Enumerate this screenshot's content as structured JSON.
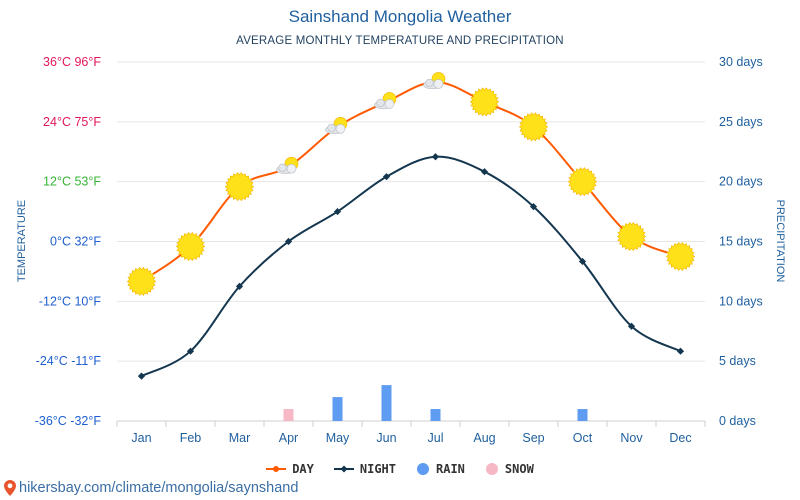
{
  "chart_data": {
    "type": "line",
    "title": "Sainshand Mongolia Weather",
    "subtitle": "AVERAGE MONTHLY TEMPERATURE AND PRECIPITATION",
    "categories": [
      "Jan",
      "Feb",
      "Mar",
      "Apr",
      "May",
      "Jun",
      "Jul",
      "Aug",
      "Sep",
      "Oct",
      "Nov",
      "Dec"
    ],
    "series": [
      {
        "name": "DAY",
        "color": "#ff5a00",
        "values": [
          -8,
          -1,
          11,
          15,
          23,
          28,
          32,
          28,
          23,
          12,
          1,
          -3
        ]
      },
      {
        "name": "NIGHT",
        "color": "#14374f",
        "values": [
          -27,
          -22,
          -9,
          0,
          6,
          13,
          17,
          14,
          7,
          -4,
          -17,
          -22
        ]
      },
      {
        "name": "RAIN",
        "color": "#5e9cf2",
        "values": [
          0,
          0,
          0,
          0,
          2,
          3,
          1,
          0,
          0,
          1,
          0,
          0
        ]
      },
      {
        "name": "SNOW",
        "color": "#f7b8c6",
        "values": [
          0,
          0,
          0,
          1,
          0,
          0,
          0,
          0,
          0,
          0,
          0,
          0
        ]
      }
    ],
    "day_icons": [
      "sun",
      "sun",
      "sun",
      "partly-cloudy",
      "partly-cloudy",
      "partly-cloudy",
      "partly-cloudy",
      "sun",
      "sun",
      "sun",
      "sun",
      "sun"
    ],
    "ylabel_left": "TEMPERATURE",
    "ylabel_right": "PRECIPITATION",
    "ylim_left": [
      -36,
      36
    ],
    "ylim_right": [
      0,
      30
    ],
    "left_ticks": [
      {
        "value": 36,
        "label": "36°C 96°F",
        "color": "#e0175a"
      },
      {
        "value": 24,
        "label": "24°C 75°F",
        "color": "#e0175a"
      },
      {
        "value": 12,
        "label": "12°C 53°F",
        "color": "#36b436"
      },
      {
        "value": 0,
        "label": "0°C 32°F",
        "color": "#1f5fcf"
      },
      {
        "value": -12,
        "label": "-12°C 10°F",
        "color": "#1f5fcf"
      },
      {
        "value": -24,
        "label": "-24°C -11°F",
        "color": "#1f5fcf"
      },
      {
        "value": -36,
        "label": "-36°C -32°F",
        "color": "#1f5fcf"
      }
    ],
    "right_ticks": [
      {
        "value": 30,
        "label": "30 days"
      },
      {
        "value": 25,
        "label": "25 days"
      },
      {
        "value": 20,
        "label": "20 days"
      },
      {
        "value": 15,
        "label": "15 days"
      },
      {
        "value": 10,
        "label": "10 days"
      },
      {
        "value": 5,
        "label": "5 days"
      },
      {
        "value": 0,
        "label": "0 days"
      }
    ],
    "grid": true,
    "legend_position": "bottom-center"
  },
  "legend": {
    "day_label": "DAY",
    "night_label": "NIGHT",
    "rain_label": "RAIN",
    "snow_label": "SNOW"
  },
  "footer": {
    "text": "hikersbay.com/climate/mongolia/saynshand",
    "icon": "map-pin-icon"
  },
  "colors": {
    "title": "#1f5f9e",
    "axis_text": "#1f5f9e",
    "grid": "#e6e6e6",
    "sun": "#ffe11a",
    "sun_edge": "#f5b400"
  }
}
